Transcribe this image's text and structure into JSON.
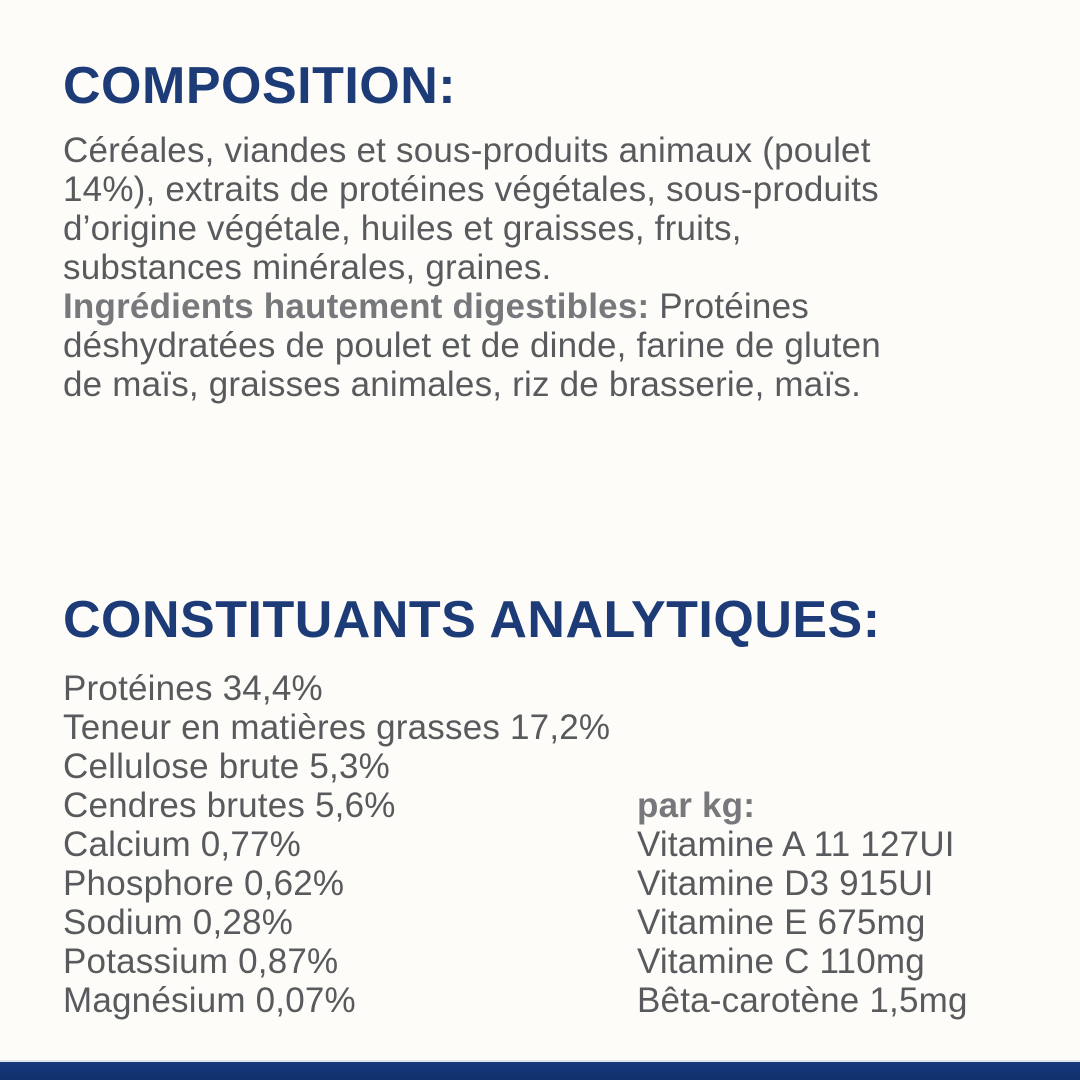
{
  "colors": {
    "background": "#fdfcf9",
    "heading_navy": "#1c3b77",
    "body_gray": "#595a5d",
    "bold_label_gray": "#77787b",
    "footer_bar_navy": "#12326f"
  },
  "composition": {
    "heading": "COMPOSITION:",
    "lines": [
      "Céréales, viandes et sous-produits animaux (poulet",
      "14%), extraits de protéines végétales, sous-produits",
      "d’origine végétale, huiles et graisses, fruits,",
      "substances minérales, graines."
    ],
    "digestible_label": "Ingrédients hautement digestibles:",
    "digestible_rest": " Protéines",
    "digestible_lines": [
      "déshydratées de poulet et de dinde, farine de gluten",
      "de maïs, graisses animales, riz de brasserie, maïs."
    ]
  },
  "analytical": {
    "heading": "CONSTITUANTS ANALYTIQUES:",
    "nutrients": [
      "Protéines 34,4%",
      "Teneur en matières grasses 17,2%",
      "Cellulose brute 5,3%",
      "Cendres brutes 5,6%",
      "Calcium 0,77%",
      "Phosphore 0,62%",
      "Sodium 0,28%",
      "Potassium 0,87%",
      "Magnésium 0,07%"
    ],
    "per_kg_label": "par kg:",
    "vitamins": [
      "Vitamine A 11 127UI",
      "Vitamine D3 915UI",
      "Vitamine E 675mg",
      "Vitamine C 110mg",
      "Bêta-carotène 1,5mg"
    ]
  }
}
